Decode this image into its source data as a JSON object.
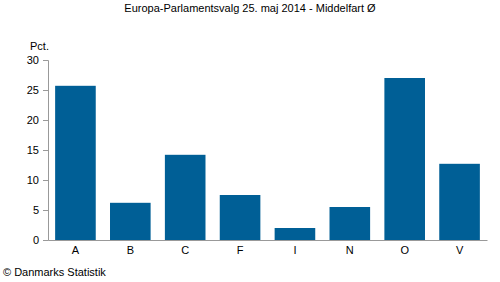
{
  "chart_data": {
    "type": "bar",
    "title": "Europa-Parlamentsvalg 25. maj 2014 - Middelfart Ø",
    "ylabel": "Pct.",
    "annotations": [
      "© Danmarks Statistik"
    ],
    "categories": [
      "A",
      "B",
      "C",
      "F",
      "I",
      "N",
      "O",
      "V"
    ],
    "values": [
      25.7,
      6.2,
      14.2,
      7.5,
      2.0,
      5.5,
      27.0,
      12.7
    ],
    "color": "#005f96",
    "ylim": [
      0,
      30
    ],
    "yticks": [
      0,
      5,
      10,
      15,
      20,
      25,
      30
    ],
    "grid": false
  }
}
